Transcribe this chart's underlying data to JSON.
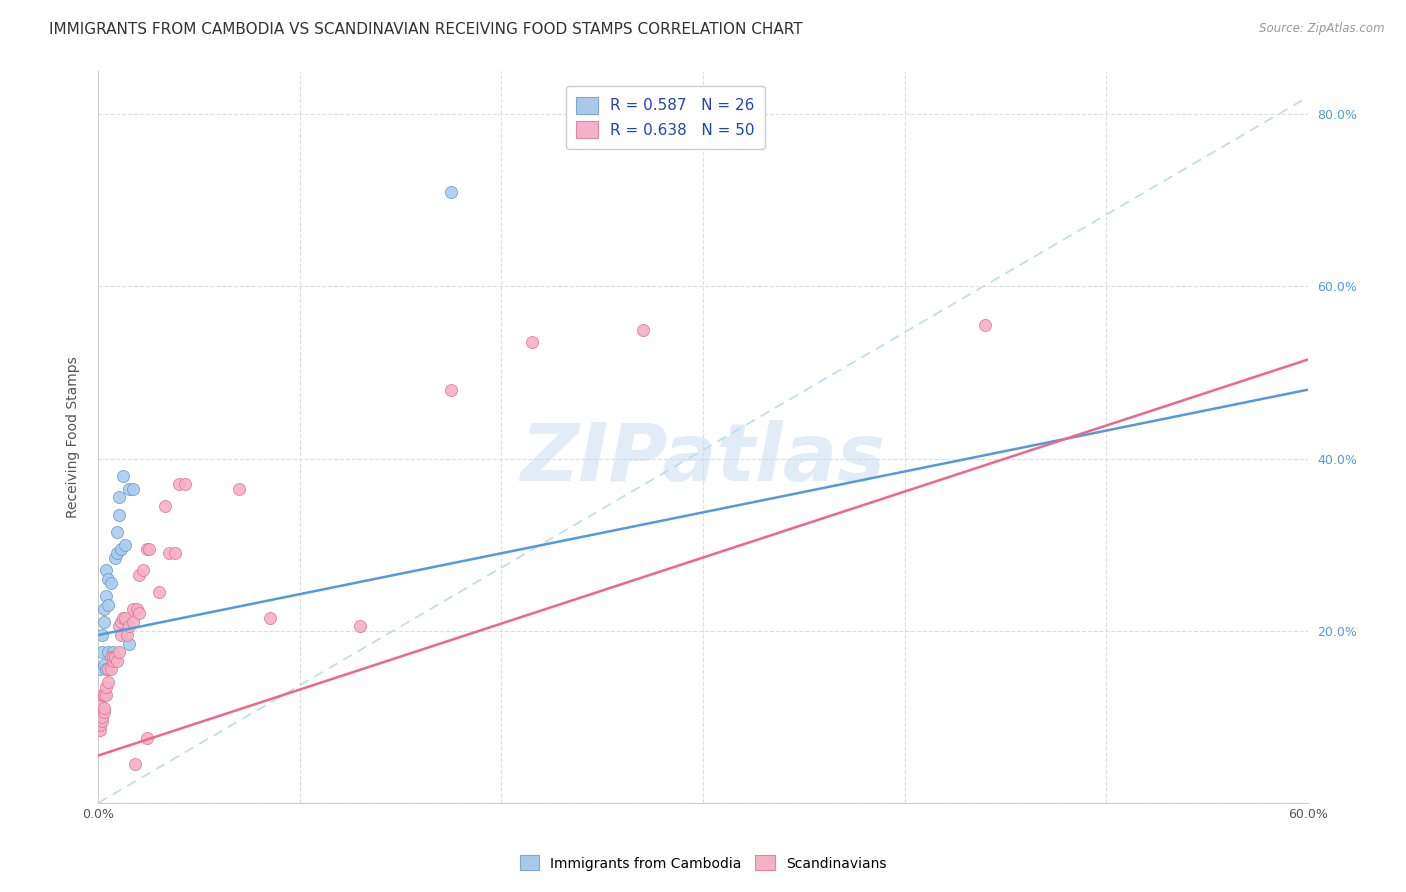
{
  "title": "IMMIGRANTS FROM CAMBODIA VS SCANDINAVIAN RECEIVING FOOD STAMPS CORRELATION CHART",
  "source": "Source: ZipAtlas.com",
  "ylabel": "Receiving Food Stamps",
  "xlim": [
    0.0,
    0.6
  ],
  "ylim": [
    0.0,
    0.85
  ],
  "legend_entries": [
    {
      "label": "R = 0.587   N = 26",
      "facecolor": "#aac8ea",
      "edgecolor": "#7aaad0"
    },
    {
      "label": "R = 0.638   N = 50",
      "facecolor": "#f4b0c4",
      "edgecolor": "#dd88a0"
    }
  ],
  "cambodia_scatter": [
    [
      0.001,
      0.155
    ],
    [
      0.002,
      0.175
    ],
    [
      0.002,
      0.195
    ],
    [
      0.003,
      0.16
    ],
    [
      0.003,
      0.21
    ],
    [
      0.003,
      0.225
    ],
    [
      0.004,
      0.155
    ],
    [
      0.004,
      0.24
    ],
    [
      0.004,
      0.27
    ],
    [
      0.005,
      0.23
    ],
    [
      0.005,
      0.26
    ],
    [
      0.005,
      0.175
    ],
    [
      0.006,
      0.255
    ],
    [
      0.007,
      0.175
    ],
    [
      0.008,
      0.285
    ],
    [
      0.009,
      0.29
    ],
    [
      0.009,
      0.315
    ],
    [
      0.01,
      0.335
    ],
    [
      0.01,
      0.355
    ],
    [
      0.011,
      0.295
    ],
    [
      0.012,
      0.38
    ],
    [
      0.013,
      0.3
    ],
    [
      0.015,
      0.185
    ],
    [
      0.015,
      0.365
    ],
    [
      0.017,
      0.365
    ],
    [
      0.175,
      0.71
    ]
  ],
  "scandinavian_scatter": [
    [
      0.001,
      0.085
    ],
    [
      0.001,
      0.09
    ],
    [
      0.001,
      0.115
    ],
    [
      0.002,
      0.095
    ],
    [
      0.002,
      0.125
    ],
    [
      0.002,
      0.1
    ],
    [
      0.003,
      0.105
    ],
    [
      0.003,
      0.11
    ],
    [
      0.003,
      0.125
    ],
    [
      0.004,
      0.125
    ],
    [
      0.004,
      0.135
    ],
    [
      0.005,
      0.14
    ],
    [
      0.005,
      0.155
    ],
    [
      0.006,
      0.155
    ],
    [
      0.006,
      0.17
    ],
    [
      0.007,
      0.165
    ],
    [
      0.007,
      0.17
    ],
    [
      0.008,
      0.17
    ],
    [
      0.009,
      0.165
    ],
    [
      0.01,
      0.175
    ],
    [
      0.01,
      0.205
    ],
    [
      0.011,
      0.195
    ],
    [
      0.011,
      0.21
    ],
    [
      0.012,
      0.215
    ],
    [
      0.013,
      0.215
    ],
    [
      0.014,
      0.195
    ],
    [
      0.015,
      0.205
    ],
    [
      0.017,
      0.21
    ],
    [
      0.017,
      0.225
    ],
    [
      0.018,
      0.045
    ],
    [
      0.019,
      0.225
    ],
    [
      0.02,
      0.22
    ],
    [
      0.02,
      0.265
    ],
    [
      0.022,
      0.27
    ],
    [
      0.024,
      0.295
    ],
    [
      0.024,
      0.075
    ],
    [
      0.025,
      0.295
    ],
    [
      0.03,
      0.245
    ],
    [
      0.033,
      0.345
    ],
    [
      0.035,
      0.29
    ],
    [
      0.038,
      0.29
    ],
    [
      0.04,
      0.37
    ],
    [
      0.043,
      0.37
    ],
    [
      0.07,
      0.365
    ],
    [
      0.085,
      0.215
    ],
    [
      0.13,
      0.205
    ],
    [
      0.175,
      0.48
    ],
    [
      0.215,
      0.535
    ],
    [
      0.27,
      0.55
    ],
    [
      0.44,
      0.555
    ]
  ],
  "cambodia_line_y0": 0.195,
  "cambodia_line_y1": 0.48,
  "scandinavian_line_y0": 0.055,
  "scandinavian_line_y1": 0.515,
  "dashed_line_y0": 0.0,
  "dashed_line_y1": 0.82,
  "scatter_color_cambodia": "#aaccee",
  "scatter_edge_cambodia": "#6699cc",
  "scatter_color_scandinavian": "#f4b0c4",
  "scatter_edge_scandinavian": "#dd7799",
  "line_color_cambodia": "#5599dd",
  "line_color_scandinavian": "#ee6688",
  "dashed_line_color": "#bbddee",
  "background_color": "#ffffff",
  "watermark_text": "ZIPatlas",
  "title_fontsize": 11,
  "axis_label_fontsize": 10,
  "tick_fontsize": 9,
  "right_tick_color": "#5599dd"
}
